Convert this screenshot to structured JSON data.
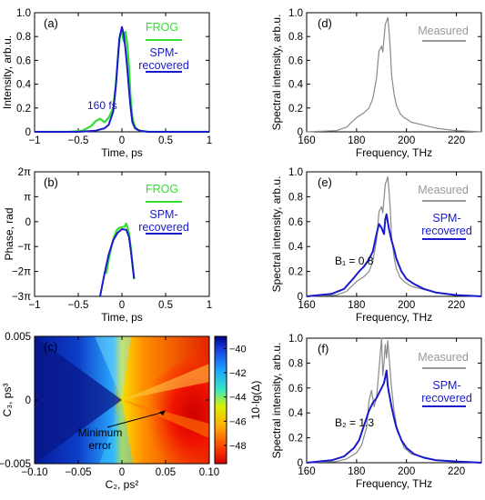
{
  "figure": {
    "pi_symbol": "π"
  },
  "chart_data": [
    {
      "id": "a",
      "panel_label": "(a)",
      "type": "line",
      "xlabel": "Time, ps",
      "ylabel": "Intensity, arb.u.",
      "xlim": [
        -1,
        1
      ],
      "ylim": [
        0,
        1.0
      ],
      "xticks": [
        -1,
        -0.5,
        0,
        0.5,
        1
      ],
      "xtick_labels": [
        "−1",
        "−0.5",
        "0",
        "0.5",
        "1"
      ],
      "yticks": [
        0,
        0.2,
        0.4,
        0.6,
        0.8,
        1.0
      ],
      "ytick_labels": [
        "0",
        "0.2",
        "0.4",
        "0.6",
        "0.8",
        "1.0"
      ],
      "legend": [
        {
          "label": "FROG",
          "color": "#33dd33"
        },
        {
          "label": "SPM-recovered",
          "color": "#1a1acc"
        }
      ],
      "annotations": [
        {
          "text": "160 fs",
          "color": "#1a1aa0"
        }
      ],
      "series": [
        {
          "name": "FROG",
          "color": "#33dd33",
          "width": 2.2,
          "x": [
            -1,
            -0.6,
            -0.45,
            -0.4,
            -0.35,
            -0.3,
            -0.25,
            -0.2,
            -0.15,
            -0.1,
            -0.07,
            -0.04,
            -0.02,
            0,
            0.02,
            0.04,
            0.06,
            0.08,
            0.1,
            0.12,
            0.15,
            0.2,
            0.3,
            0.5,
            1
          ],
          "y": [
            0,
            0,
            0.01,
            0.03,
            0.05,
            0.09,
            0.11,
            0.08,
            0.12,
            0.2,
            0.4,
            0.68,
            0.82,
            0.83,
            0.76,
            0.84,
            0.74,
            0.55,
            0.28,
            0.12,
            0.04,
            0.01,
            0,
            0,
            0
          ]
        },
        {
          "name": "SPM-recovered",
          "color": "#1a1acc",
          "width": 2,
          "x": [
            -1,
            -0.5,
            -0.3,
            -0.2,
            -0.15,
            -0.1,
            -0.07,
            -0.05,
            -0.03,
            0,
            0.02,
            0.04,
            0.06,
            0.08,
            0.1,
            0.12,
            0.15,
            0.2,
            0.3,
            1
          ],
          "y": [
            0,
            0,
            0.01,
            0.03,
            0.06,
            0.17,
            0.38,
            0.58,
            0.78,
            0.88,
            0.82,
            0.7,
            0.54,
            0.36,
            0.2,
            0.08,
            0.03,
            0.01,
            0,
            0
          ]
        }
      ]
    },
    {
      "id": "b",
      "panel_label": "(b)",
      "type": "line",
      "xlabel": "Time, ps",
      "ylabel": "Phase, rad",
      "xlim": [
        -1,
        1
      ],
      "ylim": [
        -3,
        2
      ],
      "y_unit": "pi",
      "xticks": [
        -1,
        -0.5,
        0,
        0.5,
        1
      ],
      "xtick_labels": [
        "−1",
        "−0.5",
        "0",
        "0.5",
        "1"
      ],
      "yticks": [
        -3,
        -2,
        -1,
        0,
        1,
        2
      ],
      "ytick_labels": [
        "−3π",
        "−2π",
        "−π",
        "0",
        "π",
        "2π"
      ],
      "legend": [
        {
          "label": "FROG",
          "color": "#33dd33"
        },
        {
          "label": "SPM-recovered",
          "color": "#1a1acc"
        }
      ],
      "series": [
        {
          "name": "FROG",
          "color": "#33dd33",
          "width": 2.2,
          "x": [
            -0.18,
            -0.15,
            -0.12,
            -0.09,
            -0.06,
            -0.03,
            0,
            0.03,
            0.05,
            0.08,
            0.1,
            0.12,
            0.14
          ],
          "y": [
            -2.1,
            -1.5,
            -1.0,
            -0.6,
            -0.35,
            -0.25,
            -0.22,
            -0.2,
            -0.08,
            -0.45,
            -1.0,
            -1.7,
            -2.3
          ]
        },
        {
          "name": "SPM-recovered",
          "color": "#1a1acc",
          "width": 2,
          "x": [
            -0.25,
            -0.2,
            -0.15,
            -0.1,
            -0.05,
            0,
            0.05,
            0.08,
            0.1,
            0.12,
            0.14
          ],
          "y": [
            -3.0,
            -2.1,
            -1.3,
            -0.75,
            -0.45,
            -0.3,
            -0.33,
            -0.6,
            -1.1,
            -1.7,
            -2.3
          ]
        }
      ]
    },
    {
      "id": "c",
      "panel_label": "(c)",
      "type": "heatmap",
      "xlabel": "C₂, ps²",
      "ylabel": "C₃, ps³",
      "xlim": [
        -0.1,
        0.1
      ],
      "ylim": [
        -0.005,
        0.005
      ],
      "xticks": [
        -0.1,
        -0.05,
        0,
        0.05,
        0.1
      ],
      "xtick_labels": [
        "−0.10",
        "−0.05",
        "0",
        "0.05",
        "0.10"
      ],
      "yticks": [
        -0.005,
        0,
        0.005
      ],
      "ytick_labels": [
        "−0.005",
        "0",
        "0.005"
      ],
      "colorbar": {
        "label": "10·lg(Δ)",
        "range": [
          -49.5,
          -39
        ],
        "ticks": [
          -40,
          -42,
          -44,
          -46,
          -48
        ],
        "tick_labels": [
          "−40",
          "−42",
          "−44",
          "−46",
          "−48"
        ]
      },
      "annotations": [
        {
          "text": "Minimum",
          "color": "#000000"
        },
        {
          "text": "error",
          "color": "#000000"
        }
      ],
      "minimum_error_point": {
        "x": 0.05,
        "y": -0.0008
      }
    },
    {
      "id": "d",
      "panel_label": "(d)",
      "type": "line",
      "xlabel": "Frequency, THz",
      "ylabel": "Spectral intensity, arb.u.",
      "xlim": [
        160,
        230
      ],
      "ylim": [
        0,
        1.0
      ],
      "xticks": [
        160,
        180,
        200,
        220
      ],
      "xtick_labels": [
        "160",
        "180",
        "200",
        "220"
      ],
      "yticks": [
        0,
        0.2,
        0.4,
        0.6,
        0.8,
        1.0
      ],
      "ytick_labels": [
        "0",
        "0.2",
        "0.4",
        "0.6",
        "0.8",
        "1.0"
      ],
      "legend": [
        {
          "label": "Measured",
          "color": "#999999"
        }
      ],
      "series": [
        {
          "name": "Measured",
          "color": "#8a8a8a",
          "width": 1.2,
          "x": [
            160,
            172,
            176,
            180,
            183,
            185,
            186.5,
            188,
            189,
            190,
            190.5,
            191,
            191.5,
            192,
            192.5,
            193,
            193.5,
            194,
            195,
            196,
            197.5,
            199,
            202,
            206,
            212,
            220,
            230
          ],
          "y": [
            0,
            0.01,
            0.04,
            0.12,
            0.16,
            0.2,
            0.28,
            0.45,
            0.68,
            0.72,
            0.67,
            0.78,
            0.9,
            0.93,
            0.96,
            0.85,
            0.7,
            0.48,
            0.32,
            0.22,
            0.15,
            0.12,
            0.08,
            0.06,
            0.03,
            0.01,
            0
          ]
        }
      ]
    },
    {
      "id": "e",
      "panel_label": "(e)",
      "type": "line",
      "xlabel": "Frequency, THz",
      "ylabel": "Spectral intensity, arb.u.",
      "xlim": [
        160,
        230
      ],
      "ylim": [
        0,
        1.0
      ],
      "xticks": [
        160,
        180,
        200,
        220
      ],
      "xtick_labels": [
        "160",
        "180",
        "200",
        "220"
      ],
      "yticks": [
        0,
        0.2,
        0.4,
        0.6,
        0.8,
        1.0
      ],
      "ytick_labels": [
        "0",
        "0.2",
        "0.4",
        "0.6",
        "0.8",
        "1.0"
      ],
      "legend": [
        {
          "label": "Measured",
          "color": "#999999"
        },
        {
          "label": "SPM-recovered",
          "color": "#1a1acc"
        }
      ],
      "annotations": [
        {
          "text": "B₁ = 0.8",
          "color": "#000000"
        }
      ],
      "series": [
        {
          "name": "Measured",
          "color": "#8a8a8a",
          "width": 1.2,
          "x": [
            160,
            172,
            176,
            180,
            183,
            185,
            186.5,
            188,
            189,
            190,
            190.5,
            191,
            191.5,
            192,
            192.5,
            193,
            193.5,
            194,
            195,
            196,
            197.5,
            199,
            202,
            206,
            212,
            220,
            230
          ],
          "y": [
            0,
            0.01,
            0.04,
            0.12,
            0.16,
            0.2,
            0.28,
            0.45,
            0.68,
            0.72,
            0.67,
            0.78,
            0.9,
            0.93,
            0.96,
            0.85,
            0.7,
            0.48,
            0.32,
            0.22,
            0.15,
            0.12,
            0.08,
            0.06,
            0.03,
            0.01,
            0
          ]
        },
        {
          "name": "SPM-recovered",
          "color": "#1a1acc",
          "width": 2,
          "x": [
            160,
            170,
            175,
            179,
            181,
            183,
            185,
            186.5,
            188,
            189,
            190,
            191,
            191.5,
            192,
            192.5,
            193,
            194,
            195,
            196,
            198,
            200,
            203,
            207,
            212,
            220,
            230
          ],
          "y": [
            0,
            0.02,
            0.06,
            0.15,
            0.2,
            0.24,
            0.3,
            0.36,
            0.5,
            0.58,
            0.55,
            0.5,
            0.62,
            0.66,
            0.6,
            0.54,
            0.45,
            0.38,
            0.3,
            0.2,
            0.14,
            0.1,
            0.06,
            0.03,
            0.01,
            0
          ]
        }
      ]
    },
    {
      "id": "f",
      "panel_label": "(f)",
      "type": "line",
      "xlabel": "Frequency, THz",
      "ylabel": "Spectral intensity, arb.u.",
      "xlim": [
        160,
        230
      ],
      "ylim": [
        0,
        1.0
      ],
      "xticks": [
        160,
        180,
        200,
        220
      ],
      "xtick_labels": [
        "160",
        "180",
        "200",
        "220"
      ],
      "yticks": [
        0,
        0.2,
        0.4,
        0.6,
        0.8,
        1.0
      ],
      "ytick_labels": [
        "0",
        "0.2",
        "0.4",
        "0.6",
        "0.8",
        "1.0"
      ],
      "legend": [
        {
          "label": "Measured",
          "color": "#999999"
        },
        {
          "label": "SPM-recovered",
          "color": "#1a1acc"
        }
      ],
      "annotations": [
        {
          "text": "B₂ = 1.3",
          "color": "#000000"
        }
      ],
      "series": [
        {
          "name": "Measured",
          "color": "#8a8a8a",
          "width": 1.2,
          "x": [
            160,
            172,
            176,
            180,
            182,
            184,
            185,
            186,
            187,
            188,
            189,
            190,
            190.5,
            191,
            191.5,
            192,
            192.5,
            193,
            194,
            195,
            196,
            197.5,
            199,
            202,
            206,
            212,
            220,
            230
          ],
          "y": [
            0,
            0.01,
            0.03,
            0.08,
            0.14,
            0.28,
            0.5,
            0.58,
            0.45,
            0.52,
            0.75,
            1.0,
            0.7,
            0.8,
            0.95,
            0.84,
            0.98,
            0.86,
            0.6,
            0.42,
            0.3,
            0.2,
            0.12,
            0.07,
            0.05,
            0.02,
            0.01,
            0
          ]
        },
        {
          "name": "SPM-recovered",
          "color": "#1a1acc",
          "width": 2,
          "x": [
            160,
            170,
            175,
            179,
            181,
            183,
            185,
            186.5,
            188,
            189,
            190,
            191,
            192,
            192.5,
            193,
            194,
            195,
            196,
            198,
            200,
            203,
            207,
            212,
            220,
            230
          ],
          "y": [
            0,
            0.02,
            0.05,
            0.12,
            0.18,
            0.3,
            0.42,
            0.48,
            0.52,
            0.56,
            0.6,
            0.64,
            0.74,
            0.62,
            0.56,
            0.45,
            0.36,
            0.28,
            0.18,
            0.12,
            0.07,
            0.04,
            0.02,
            0.01,
            0
          ]
        }
      ]
    }
  ]
}
